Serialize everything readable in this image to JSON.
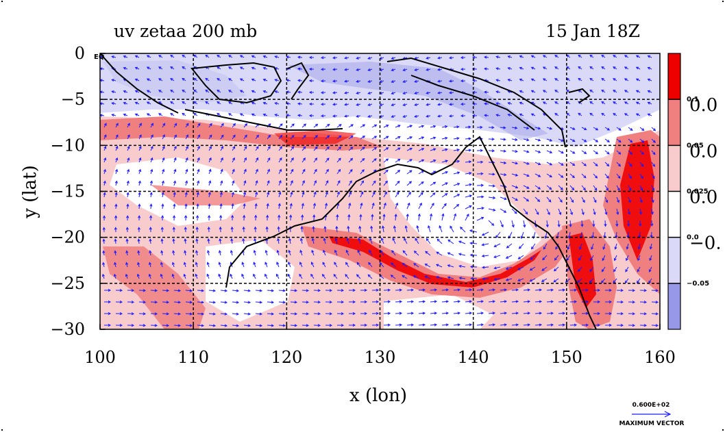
{
  "chart_data": {
    "type": "heatmap",
    "title": "uv zetaa 200 mb",
    "subtitle": "15 Jan 18Z",
    "xlabel": "x (lon)",
    "ylabel": "y (lat)",
    "xlim": [
      100,
      160
    ],
    "ylim": [
      -30,
      0
    ],
    "x_ticks": [
      "100",
      "110",
      "120",
      "130",
      "140",
      "150",
      "160"
    ],
    "y_ticks": [
      "0",
      "−5",
      "−10",
      "−15",
      "−20",
      "−25",
      "−30"
    ],
    "corner_label": "EQ",
    "grid": true,
    "colorbar": {
      "levels": [
        "0.1",
        "0.05",
        "0.025",
        "0.0",
        "−0.05"
      ],
      "side_labels": [
        "0.0",
        "0.0",
        "0.0",
        "−0."
      ],
      "colors": [
        "#ef0000",
        "#f08080",
        "#f8cccc",
        "#ffffff",
        "#dadaf8",
        "#9898e8"
      ]
    },
    "vector_key": {
      "value": "0.600E+02",
      "label": "MAXIMUM VECTOR",
      "color": "#0000ff"
    }
  }
}
